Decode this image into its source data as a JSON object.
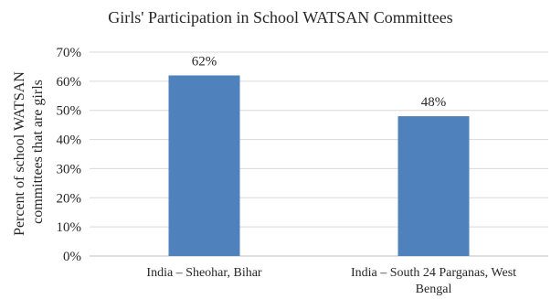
{
  "chart_data": {
    "type": "bar",
    "title": "Girls' Participation in School WATSAN Committees",
    "ylabel_lines": [
      "Percent of school WATSAN",
      "committees that are girls"
    ],
    "xlabel": "",
    "categories": [
      "India – Sheohar, Bihar",
      "India – South 24 Parganas, West Bengal"
    ],
    "category_lines": [
      [
        "India – Sheohar, Bihar"
      ],
      [
        "India – South 24 Parganas, West",
        "Bengal"
      ]
    ],
    "values": [
      0.62,
      0.48
    ],
    "data_labels": [
      "62%",
      "48%"
    ],
    "ylim": [
      0,
      0.7
    ],
    "yticks": [
      0,
      0.1,
      0.2,
      0.3,
      0.4,
      0.5,
      0.6,
      0.7
    ],
    "ytick_labels": [
      "0%",
      "10%",
      "20%",
      "30%",
      "40%",
      "50%",
      "60%",
      "70%"
    ],
    "grid": true,
    "legend": "none",
    "bar_color": "#4f81bd",
    "grid_color": "#d9d9d9",
    "axis_color": "#bfbfbf"
  }
}
